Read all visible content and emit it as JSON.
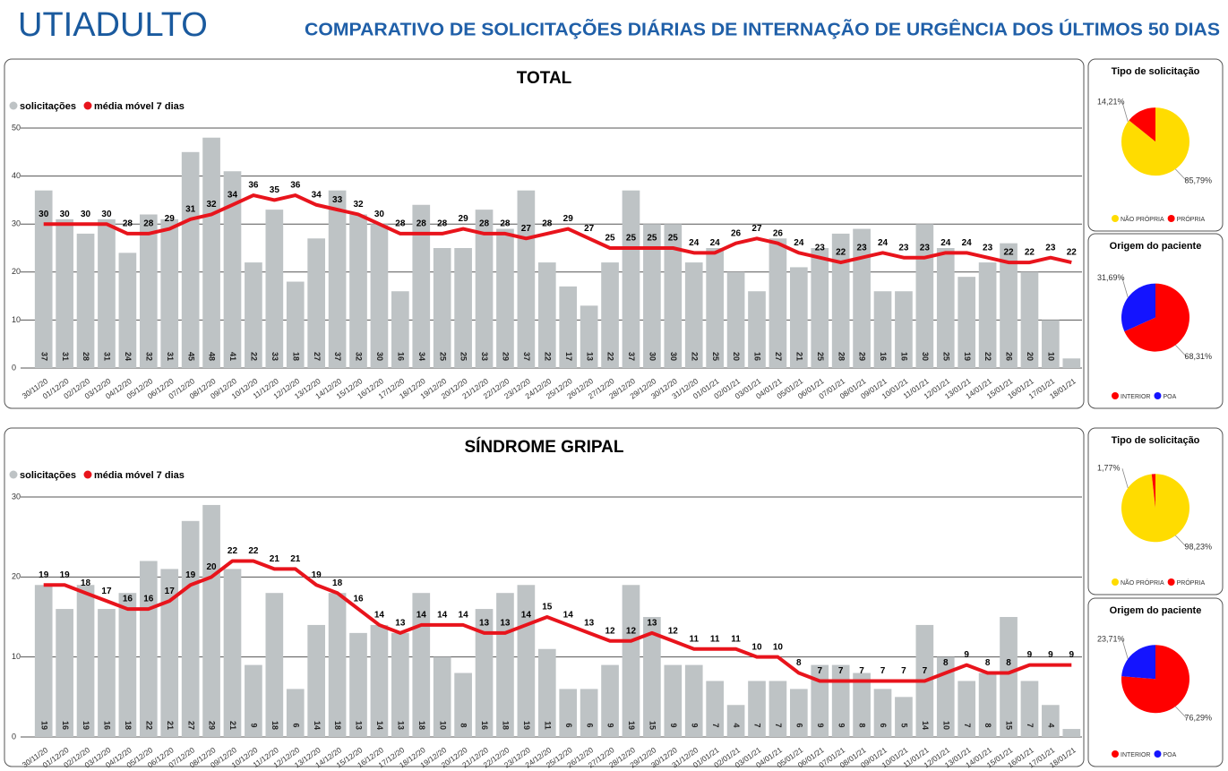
{
  "header": {
    "title": "UTIADULTO",
    "subtitle": "COMPARATIVO DE SOLICITAÇÕES DIÁRIAS DE INTERNAÇÃO DE URGÊNCIA DOS ÚLTIMOS 50 DIAS"
  },
  "chart_data": [
    {
      "type": "bar",
      "title": "TOTAL",
      "categories": [
        "30/11/20",
        "01/12/20",
        "02/12/20",
        "03/12/20",
        "04/12/20",
        "05/12/20",
        "06/12/20",
        "07/12/20",
        "08/12/20",
        "09/12/20",
        "10/12/20",
        "11/12/20",
        "12/12/20",
        "13/12/20",
        "14/12/20",
        "15/12/20",
        "16/12/20",
        "17/12/20",
        "18/12/20",
        "19/12/20",
        "20/12/20",
        "21/12/20",
        "22/12/20",
        "23/12/20",
        "24/12/20",
        "25/12/20",
        "26/12/20",
        "27/12/20",
        "28/12/20",
        "29/12/20",
        "30/12/20",
        "31/12/20",
        "01/01/21",
        "02/01/21",
        "03/01/21",
        "04/01/21",
        "05/01/21",
        "06/01/21",
        "07/01/21",
        "08/01/21",
        "09/01/21",
        "10/01/21",
        "11/01/21",
        "12/01/21",
        "13/01/21",
        "14/01/21",
        "15/01/21",
        "16/01/21",
        "17/01/21",
        "18/01/21"
      ],
      "series": [
        {
          "name": "solicitações",
          "color": "#bec3c5",
          "values": [
            37,
            31,
            28,
            31,
            24,
            32,
            31,
            45,
            48,
            41,
            22,
            33,
            18,
            27,
            37,
            32,
            30,
            16,
            34,
            25,
            25,
            33,
            29,
            37,
            22,
            17,
            13,
            22,
            37,
            30,
            30,
            22,
            25,
            20,
            16,
            27,
            21,
            25,
            28,
            29,
            16,
            16,
            30,
            25,
            19,
            22,
            26,
            20,
            10,
            2
          ]
        },
        {
          "name": "média móvel 7 dias",
          "color": "#e8141c",
          "type": "line",
          "values": [
            30,
            30,
            30,
            30,
            28,
            28,
            29,
            31,
            32,
            34,
            36,
            35,
            36,
            34,
            33,
            32,
            30,
            28,
            28,
            28,
            29,
            28,
            28,
            27,
            28,
            29,
            27,
            25,
            25,
            25,
            25,
            24,
            24,
            26,
            27,
            26,
            24,
            23,
            22,
            23,
            24,
            23,
            23,
            24,
            24,
            23,
            22,
            22,
            23,
            22
          ]
        }
      ],
      "ylim": [
        0,
        50
      ],
      "yticks": [
        0,
        10,
        20,
        30,
        40,
        50
      ],
      "grid": true
    },
    {
      "type": "pie",
      "title": "Tipo de solicitação",
      "categories": [
        "NÃO PRÓPRIA",
        "PRÓPRIA"
      ],
      "values": [
        85.79,
        14.21
      ],
      "value_labels": [
        "85,79%",
        "14,21%"
      ],
      "colors": [
        "#ffdc00",
        "#ff0000"
      ]
    },
    {
      "type": "pie",
      "title": "Origem do paciente",
      "categories": [
        "INTERIOR",
        "POA"
      ],
      "values": [
        68.31,
        31.69
      ],
      "value_labels": [
        "68,31%",
        "31,69%"
      ],
      "colors": [
        "#ff0000",
        "#1414ff"
      ]
    },
    {
      "type": "bar",
      "title": "SÍNDROME GRIPAL",
      "categories": [
        "30/11/20",
        "01/12/20",
        "02/12/20",
        "03/12/20",
        "04/12/20",
        "05/12/20",
        "06/12/20",
        "07/12/20",
        "08/12/20",
        "09/12/20",
        "10/12/20",
        "11/12/20",
        "12/12/20",
        "13/12/20",
        "14/12/20",
        "15/12/20",
        "16/12/20",
        "17/12/20",
        "18/12/20",
        "19/12/20",
        "20/12/20",
        "21/12/20",
        "22/12/20",
        "23/12/20",
        "24/12/20",
        "25/12/20",
        "26/12/20",
        "27/12/20",
        "28/12/20",
        "29/12/20",
        "30/12/20",
        "31/12/20",
        "01/01/21",
        "02/01/21",
        "03/01/21",
        "04/01/21",
        "05/01/21",
        "06/01/21",
        "07/01/21",
        "08/01/21",
        "09/01/21",
        "10/01/21",
        "11/01/21",
        "12/01/21",
        "13/01/21",
        "14/01/21",
        "15/01/21",
        "16/01/21",
        "17/01/21",
        "18/01/21"
      ],
      "series": [
        {
          "name": "solicitações",
          "color": "#bec3c5",
          "values": [
            19,
            16,
            19,
            16,
            18,
            22,
            21,
            27,
            29,
            21,
            9,
            18,
            6,
            14,
            18,
            13,
            14,
            13,
            18,
            10,
            8,
            16,
            18,
            19,
            11,
            6,
            6,
            9,
            19,
            15,
            9,
            9,
            7,
            4,
            7,
            7,
            6,
            9,
            9,
            8,
            6,
            5,
            14,
            10,
            7,
            8,
            15,
            7,
            4,
            1
          ]
        },
        {
          "name": "média móvel 7 dias",
          "color": "#e8141c",
          "type": "line",
          "values": [
            19,
            19,
            18,
            17,
            16,
            16,
            17,
            19,
            20,
            22,
            22,
            21,
            21,
            19,
            18,
            16,
            14,
            13,
            14,
            14,
            14,
            13,
            13,
            14,
            15,
            14,
            13,
            12,
            12,
            13,
            12,
            11,
            11,
            11,
            10,
            10,
            8,
            7,
            7,
            7,
            7,
            7,
            7,
            8,
            9,
            8,
            8,
            9,
            9,
            9
          ]
        }
      ],
      "ylim": [
        0,
        30
      ],
      "yticks": [
        0,
        10,
        20,
        30
      ],
      "grid": true
    },
    {
      "type": "pie",
      "title": "Tipo de solicitação",
      "categories": [
        "NÃO PRÓPRIA",
        "PRÓPRIA"
      ],
      "values": [
        98.23,
        1.77
      ],
      "value_labels": [
        "98,23%",
        "1,77%"
      ],
      "colors": [
        "#ffdc00",
        "#ff0000"
      ]
    },
    {
      "type": "pie",
      "title": "Origem do paciente",
      "categories": [
        "INTERIOR",
        "POA"
      ],
      "values": [
        76.29,
        23.71
      ],
      "value_labels": [
        "76,29%",
        "23,71%"
      ],
      "colors": [
        "#ff0000",
        "#1414ff"
      ]
    }
  ]
}
